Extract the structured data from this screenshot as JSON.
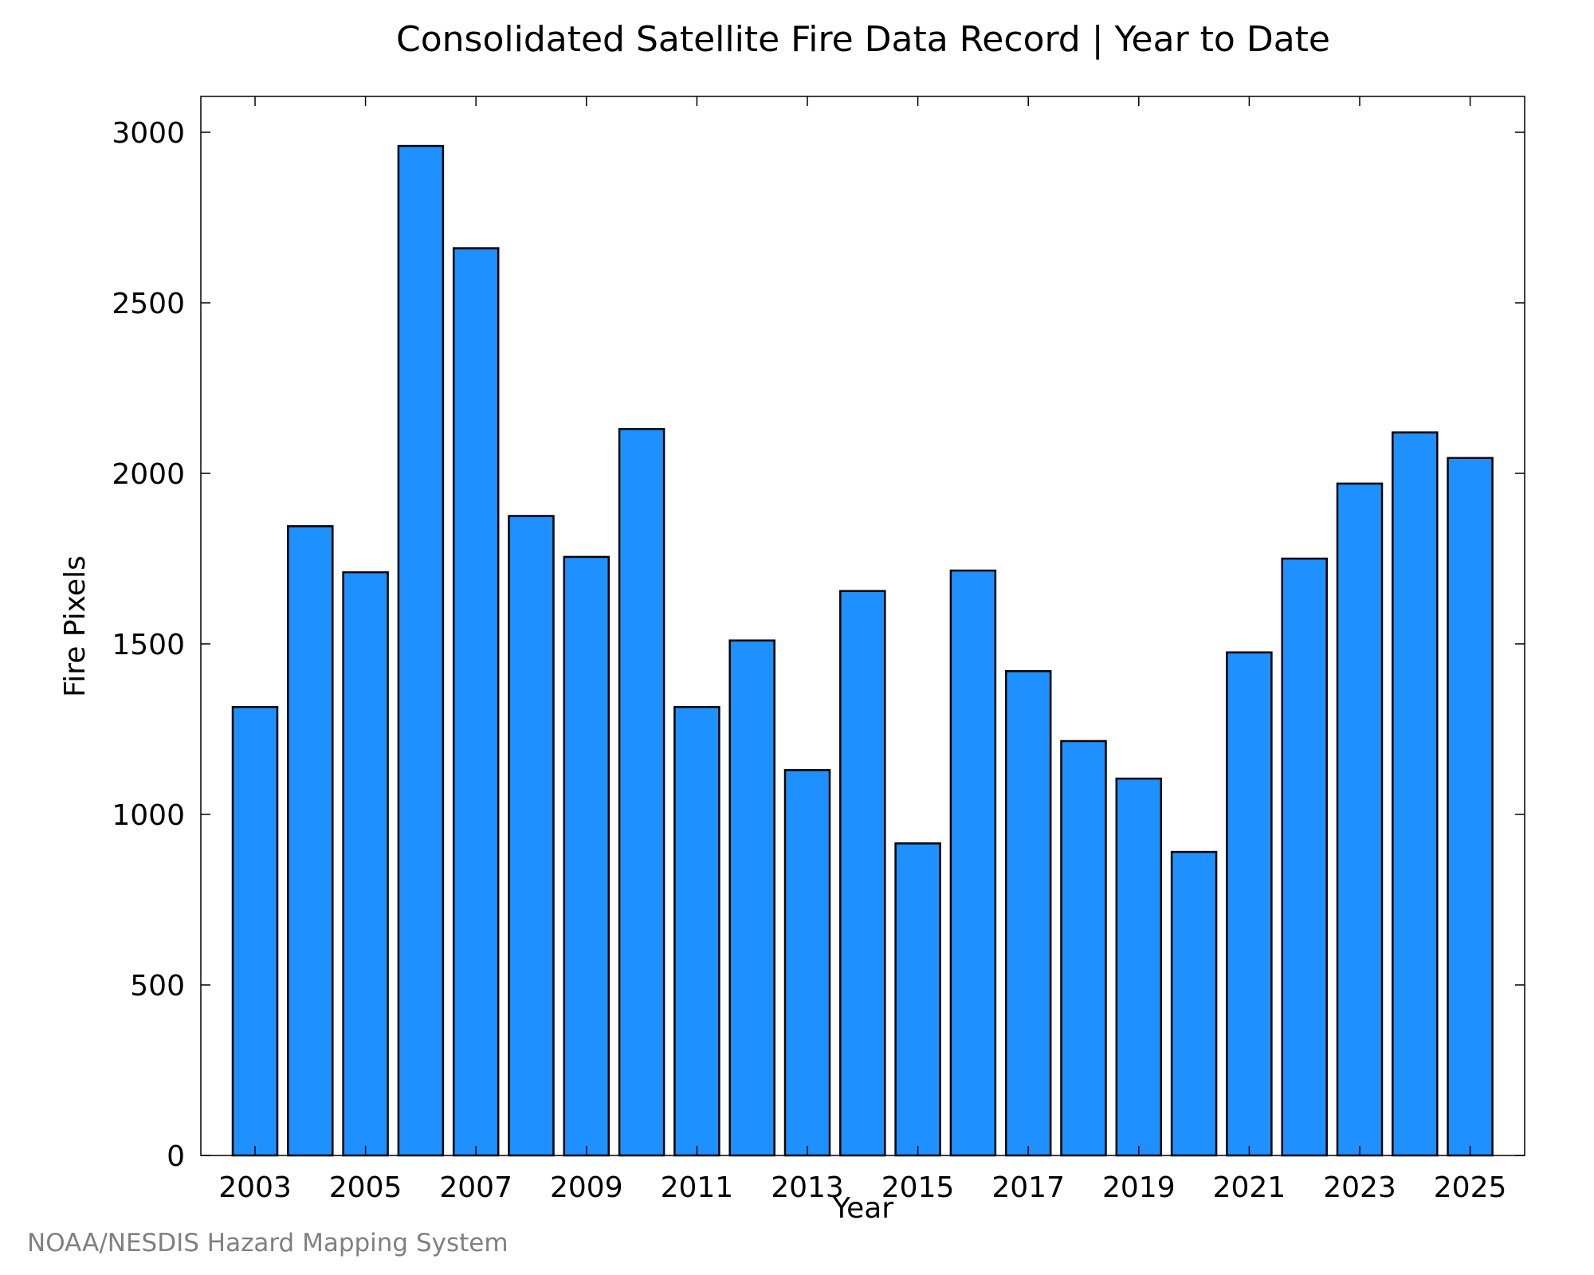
{
  "chart_data": {
    "type": "bar",
    "title": "Consolidated Satellite Fire Data Record | Year to Date",
    "xlabel": "Year",
    "ylabel": "Fire Pixels",
    "categories": [
      "2003",
      "2004",
      "2005",
      "2006",
      "2007",
      "2008",
      "2009",
      "2010",
      "2011",
      "2012",
      "2013",
      "2014",
      "2015",
      "2016",
      "2017",
      "2018",
      "2019",
      "2020",
      "2021",
      "2022",
      "2023",
      "2024",
      "2025"
    ],
    "values": [
      1315,
      1845,
      1710,
      2960,
      2660,
      1875,
      1755,
      2130,
      1315,
      1510,
      1130,
      1655,
      915,
      1715,
      1420,
      1215,
      1105,
      890,
      1475,
      1750,
      1970,
      2120,
      2045
    ],
    "x_tick_labels": [
      "2003",
      "2005",
      "2007",
      "2009",
      "2011",
      "2013",
      "2015",
      "2017",
      "2019",
      "2021",
      "2023",
      "2025"
    ],
    "y_ticks": [
      0,
      500,
      1000,
      1500,
      2000,
      2500,
      3000
    ],
    "ylim": [
      0,
      3100
    ],
    "grid": false,
    "bar_color": "#1e90ff"
  },
  "credit": "NOAA/NESDIS Hazard Mapping System"
}
